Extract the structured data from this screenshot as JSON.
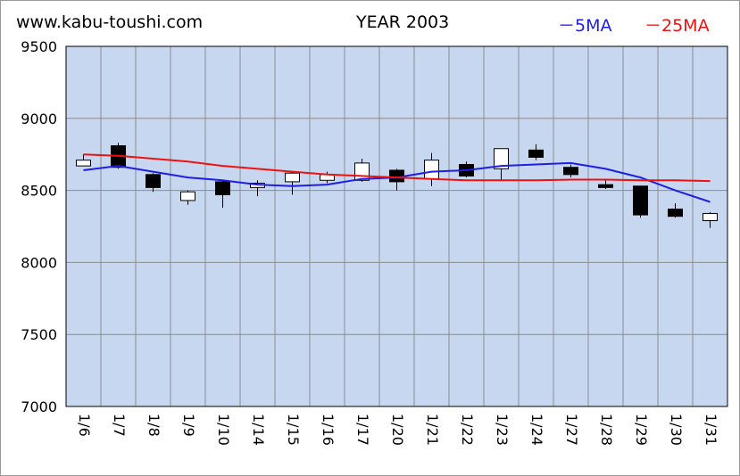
{
  "header": {
    "site": "www.kabu-toushi.com",
    "title": "YEAR 2003"
  },
  "legend": [
    {
      "label": "－5MA",
      "color": "#1e1ee6"
    },
    {
      "label": "－25MA",
      "color": "#ee1111"
    }
  ],
  "colors": {
    "plot_background": "#c6d7ef",
    "grid": "#8c8c8c",
    "up_candle": "#ffffff",
    "down_candle": "#000000"
  },
  "chart_data": {
    "type": "candlestick",
    "title": "YEAR 2003",
    "ylim": [
      7000,
      9500
    ],
    "yticks": [
      7000,
      7500,
      8000,
      8500,
      9000,
      9500
    ],
    "grid": true,
    "legend_position": "top-right",
    "categories": [
      "1/6",
      "1/7",
      "1/8",
      "1/9",
      "1/10",
      "1/14",
      "1/15",
      "1/16",
      "1/17",
      "1/20",
      "1/21",
      "1/22",
      "1/23",
      "1/24",
      "1/27",
      "1/28",
      "1/29",
      "1/30",
      "1/31"
    ],
    "candles": [
      {
        "date": "1/6",
        "open": 8670,
        "close": 8710,
        "high": 8750,
        "low": 8670
      },
      {
        "date": "1/7",
        "open": 8810,
        "close": 8660,
        "high": 8830,
        "low": 8650
      },
      {
        "date": "1/8",
        "open": 8610,
        "close": 8520,
        "high": 8620,
        "low": 8490
      },
      {
        "date": "1/9",
        "open": 8430,
        "close": 8490,
        "high": 8500,
        "low": 8400
      },
      {
        "date": "1/10",
        "open": 8560,
        "close": 8470,
        "high": 8570,
        "low": 8380
      },
      {
        "date": "1/14",
        "open": 8520,
        "close": 8550,
        "high": 8570,
        "low": 8460
      },
      {
        "date": "1/15",
        "open": 8560,
        "close": 8620,
        "high": 8630,
        "low": 8470
      },
      {
        "date": "1/16",
        "open": 8570,
        "close": 8610,
        "high": 8630,
        "low": 8550
      },
      {
        "date": "1/17",
        "open": 8570,
        "close": 8690,
        "high": 8720,
        "low": 8560
      },
      {
        "date": "1/20",
        "open": 8640,
        "close": 8560,
        "high": 8650,
        "low": 8500
      },
      {
        "date": "1/21",
        "open": 8580,
        "close": 8710,
        "high": 8760,
        "low": 8530
      },
      {
        "date": "1/22",
        "open": 8680,
        "close": 8600,
        "high": 8700,
        "low": 8590
      },
      {
        "date": "1/23",
        "open": 8650,
        "close": 8790,
        "high": 8790,
        "low": 8570
      },
      {
        "date": "1/24",
        "open": 8780,
        "close": 8730,
        "high": 8820,
        "low": 8710
      },
      {
        "date": "1/27",
        "open": 8660,
        "close": 8610,
        "high": 8680,
        "low": 8590
      },
      {
        "date": "1/28",
        "open": 8540,
        "close": 8520,
        "high": 8570,
        "low": 8510
      },
      {
        "date": "1/29",
        "open": 8530,
        "close": 8330,
        "high": 8530,
        "low": 8310
      },
      {
        "date": "1/30",
        "open": 8370,
        "close": 8320,
        "high": 8410,
        "low": 8310
      },
      {
        "date": "1/31",
        "open": 8290,
        "close": 8340,
        "high": 8350,
        "low": 8240
      }
    ],
    "series": [
      {
        "name": "5MA",
        "values": [
          8640,
          8670,
          8630,
          8590,
          8570,
          8540,
          8530,
          8540,
          8580,
          8590,
          8630,
          8640,
          8670,
          8680,
          8690,
          8650,
          8590,
          8500,
          8420
        ]
      },
      {
        "name": "25MA",
        "values": [
          8750,
          8740,
          8720,
          8700,
          8670,
          8650,
          8630,
          8610,
          8600,
          8590,
          8580,
          8570,
          8570,
          8570,
          8575,
          8575,
          8570,
          8570,
          8565
        ]
      }
    ]
  }
}
